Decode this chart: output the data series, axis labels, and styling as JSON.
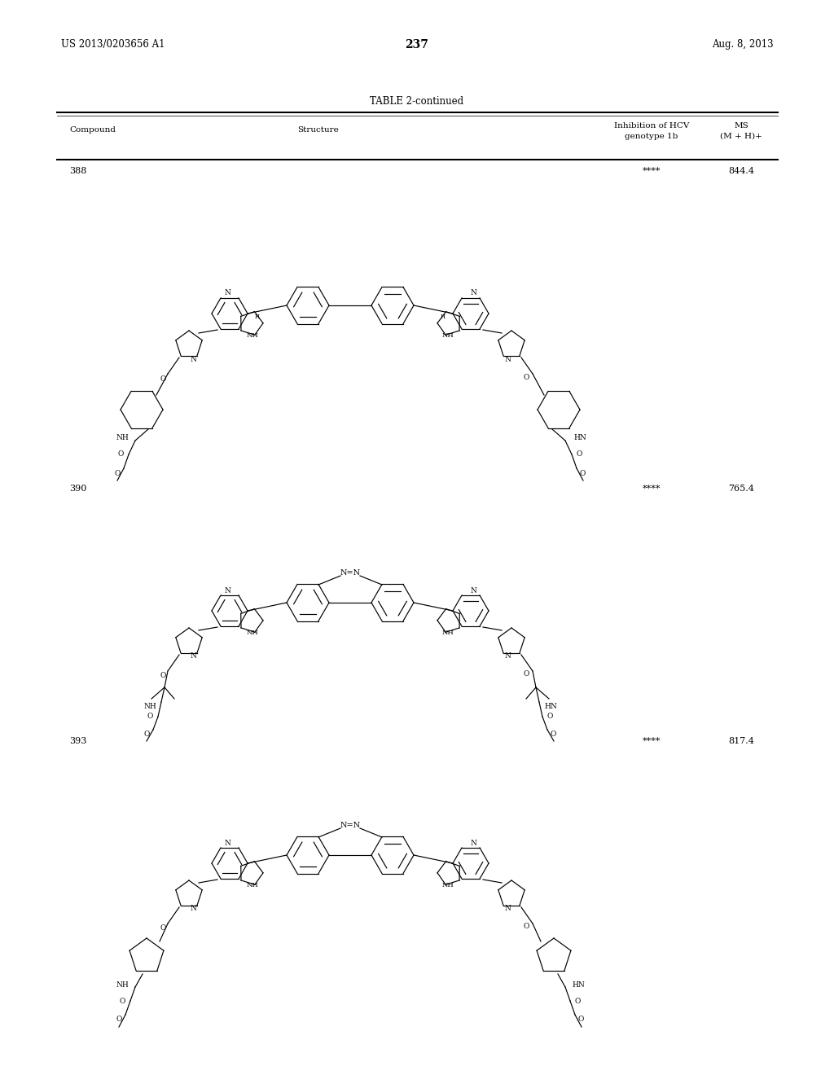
{
  "background_color": "#ffffff",
  "page_number": "237",
  "left_header": "US 2013/0203656 A1",
  "right_header": "Aug. 8, 2013",
  "table_title": "TABLE 2-continued",
  "col_compound": "Compound",
  "col_structure": "Structure",
  "col_inhib1": "Inhibition of HCV",
  "col_inhib2": "genotype 1b",
  "col_ms1": "MS",
  "col_ms2": "(M + H)+",
  "rows": [
    {
      "compound": "388",
      "inhibition": "****",
      "ms": "844.4"
    },
    {
      "compound": "390",
      "inhibition": "****",
      "ms": "765.4"
    },
    {
      "compound": "393",
      "inhibition": "****",
      "ms": "817.4"
    }
  ]
}
